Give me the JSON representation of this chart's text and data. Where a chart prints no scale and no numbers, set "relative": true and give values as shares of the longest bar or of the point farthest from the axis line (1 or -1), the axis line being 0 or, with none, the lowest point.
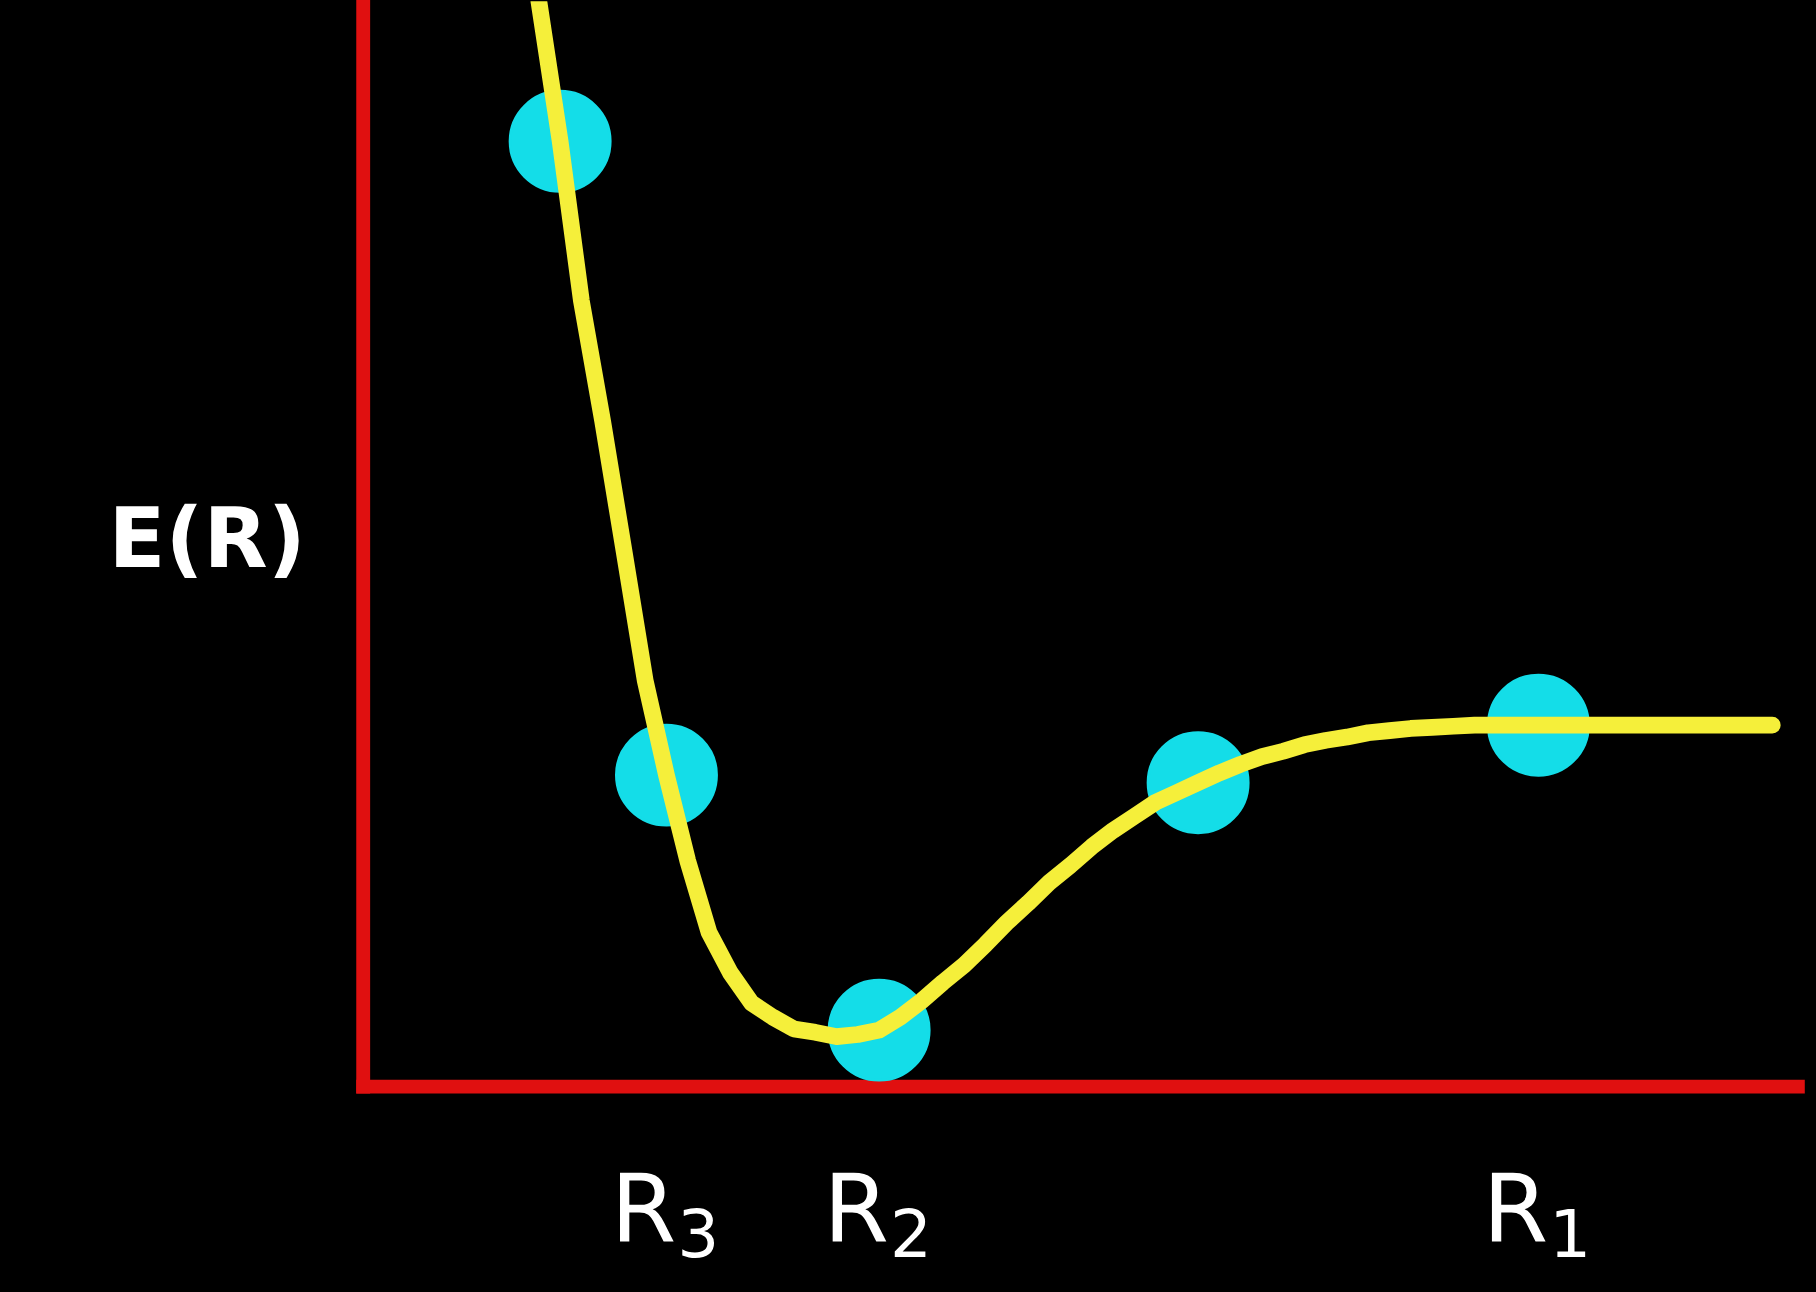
{
  "chart_data": {
    "type": "line",
    "relative": true,
    "ylabel": "E(R)",
    "categories": [
      null,
      null,
      null,
      null,
      null,
      null,
      "R$_{3}$",
      null,
      null,
      null,
      null,
      null,
      null,
      null,
      null,
      null,
      "R$_{2}$",
      null,
      null,
      null,
      null,
      null,
      null,
      null,
      null,
      null,
      null,
      null,
      null,
      null,
      null,
      null,
      null,
      null,
      null,
      null,
      null,
      null,
      null,
      null,
      null,
      null,
      null,
      null,
      null,
      null,
      null,
      "R$_{1}$",
      null,
      null,
      null,
      null,
      null,
      null,
      null,
      null,
      null,
      null,
      null
    ],
    "tick_labels": "x",
    "grid": false,
    "legend": false,
    "series": [
      {
        "color": "#f5ef3a",
        "marker": "none",
        "line_style": "solid",
        "values": [
          1.0,
          0.871,
          0.724,
          0.613,
          0.494,
          0.374,
          0.287,
          0.208,
          0.142,
          0.105,
          0.077,
          0.064,
          0.053,
          0.05,
          0.046,
          0.048,
          0.052,
          0.064,
          0.079,
          0.096,
          0.112,
          0.131,
          0.151,
          0.169,
          0.188,
          0.204,
          0.221,
          0.236,
          0.249,
          0.262,
          0.271,
          0.28,
          0.289,
          0.297,
          0.304,
          0.309,
          0.315,
          0.319,
          0.322,
          0.326,
          0.328,
          0.33,
          0.331,
          0.332,
          0.333,
          0.333,
          0.333,
          0.333,
          0.333,
          0.333,
          0.333,
          0.333,
          0.333,
          0.333,
          0.333,
          0.333,
          0.333,
          0.333,
          0.333
        ]
      },
      {
        "type": "scatter",
        "color": "#14dde8",
        "marker": "circle",
        "values": [
          null,
          0.871,
          null,
          null,
          null,
          null,
          0.287,
          null,
          null,
          null,
          null,
          null,
          null,
          null,
          null,
          null,
          0.052,
          null,
          null,
          null,
          null,
          null,
          null,
          null,
          null,
          null,
          null,
          null,
          null,
          null,
          null,
          0.28,
          null,
          null,
          null,
          null,
          null,
          null,
          null,
          null,
          null,
          null,
          null,
          null,
          null,
          null,
          null,
          0.333,
          null,
          null,
          null,
          null,
          null,
          null,
          null,
          null,
          null,
          null,
          null
        ]
      }
    ]
  }
}
